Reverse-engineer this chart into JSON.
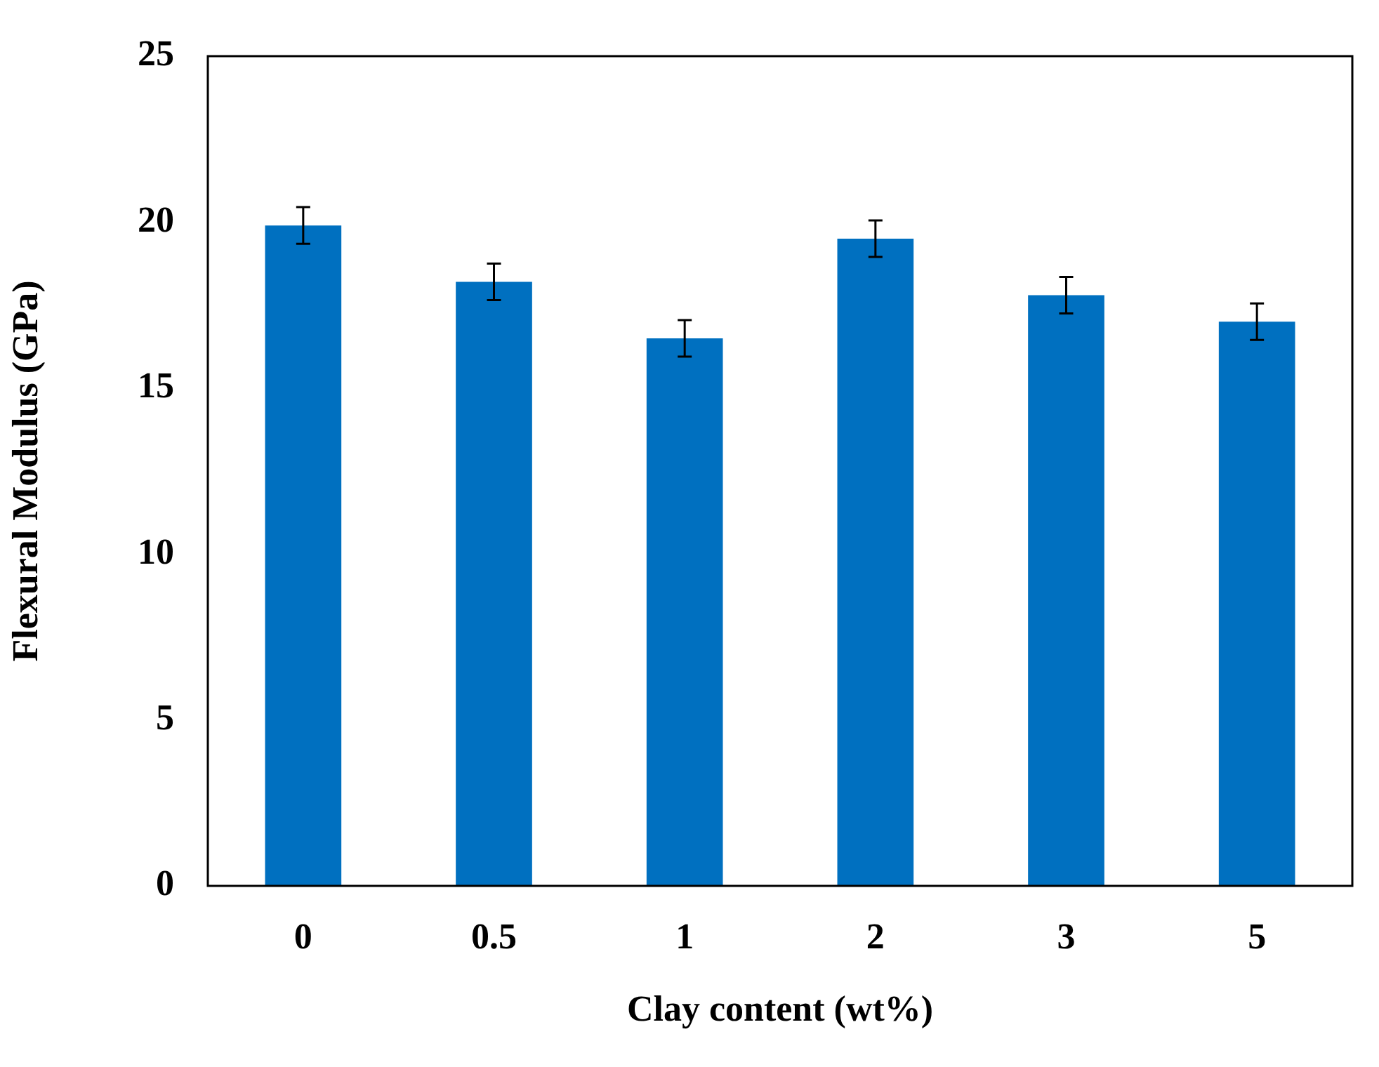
{
  "chart_data": {
    "type": "bar",
    "xlabel": "Clay content (wt%)",
    "ylabel": "Flexural Modulus (GPa)",
    "categories": [
      "0",
      "0.5",
      "1",
      "2",
      "3",
      "5"
    ],
    "values": [
      19.9,
      18.2,
      16.5,
      19.5,
      17.8,
      17.0
    ],
    "errors": [
      0.55,
      0.55,
      0.55,
      0.55,
      0.55,
      0.55
    ],
    "color": "#0070c0",
    "ylim": [
      0,
      25
    ],
    "yticks": [
      0,
      5,
      10,
      15,
      20,
      25
    ],
    "grid": false,
    "legend": false
  }
}
